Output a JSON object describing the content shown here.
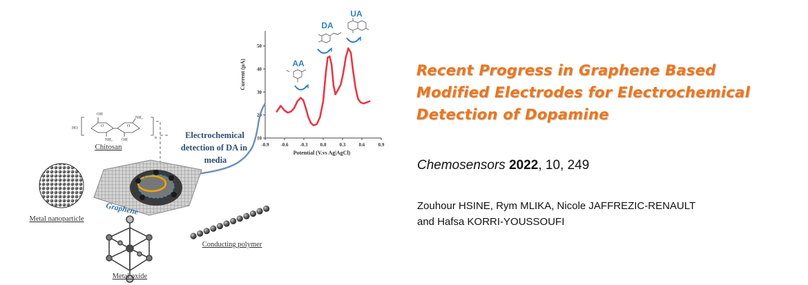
{
  "paper": {
    "title_lines": [
      "Recent Progress in Graphene Based",
      "Modified Electrodes for Electrochemical",
      "Detection of Dopamine"
    ],
    "journal": "Chemosensors",
    "year": "2022",
    "volume_page": ", 10, 249",
    "author_lines": [
      "Zouhour HSINE,  Rym MLIKA, Nicole JAFFREZIC-RENAULT",
      "and Hafsa KORRI-YOUSSOUFI"
    ]
  },
  "figure": {
    "labels": {
      "chitosan": "Chitosan",
      "metal_nanoparticle": "Metal nanoparticle",
      "graphene": "Graphene",
      "conducting_polymer": "Conducting polymer",
      "metal_oxide": "Metal oxide",
      "detection_lines": [
        "Electrochemical",
        "detection of DA in",
        "media"
      ]
    },
    "chem_labels": {
      "ho_left": "HO",
      "oh_top": "OH",
      "nh2_a": "NH₂",
      "nh2_b": "NH₂",
      "o_a": "O",
      "o_b": "O",
      "oh_bottom": "OH",
      "n_sub": "n"
    },
    "colors": {
      "title": "#E87722",
      "curve": "#E53945",
      "peak_labels": "#2F7FBF",
      "connector": "#6D8FB8"
    },
    "chart_data": {
      "type": "line",
      "xlabel": "Potential (V.vs Ag|AgCl)",
      "ylabel": "Current (μA)",
      "x_ticks": [
        "-0.9",
        "-0.6",
        "-0.3",
        "0.0",
        "0.3",
        "0.6",
        "0.9"
      ],
      "y_ticks": [
        "10",
        "20",
        "30",
        "40",
        "50"
      ],
      "xlim": [
        -0.9,
        0.9
      ],
      "ylim": [
        10,
        55
      ],
      "series": [
        {
          "x": [
            -0.72,
            -0.66,
            -0.6,
            -0.55,
            -0.5,
            -0.45,
            -0.4,
            -0.35,
            -0.31,
            -0.27,
            -0.23,
            -0.19,
            -0.15,
            -0.1,
            -0.05,
            0.0,
            0.04,
            0.07,
            0.1,
            0.13,
            0.16,
            0.19,
            0.23,
            0.27,
            0.31,
            0.35,
            0.39,
            0.43,
            0.46,
            0.5,
            0.54,
            0.58,
            0.62,
            0.66,
            0.72
          ],
          "y": [
            21.5,
            24,
            22,
            21,
            21.5,
            23,
            26,
            27.5,
            26.5,
            23,
            19,
            16.5,
            15.5,
            16,
            19,
            26,
            38,
            45,
            45.5,
            42,
            33,
            29,
            31,
            33,
            38,
            45,
            49,
            47,
            40,
            32,
            27,
            25.5,
            25,
            25.3,
            26
          ]
        }
      ],
      "annotations": [
        "AA",
        "DA",
        "UA"
      ]
    }
  }
}
